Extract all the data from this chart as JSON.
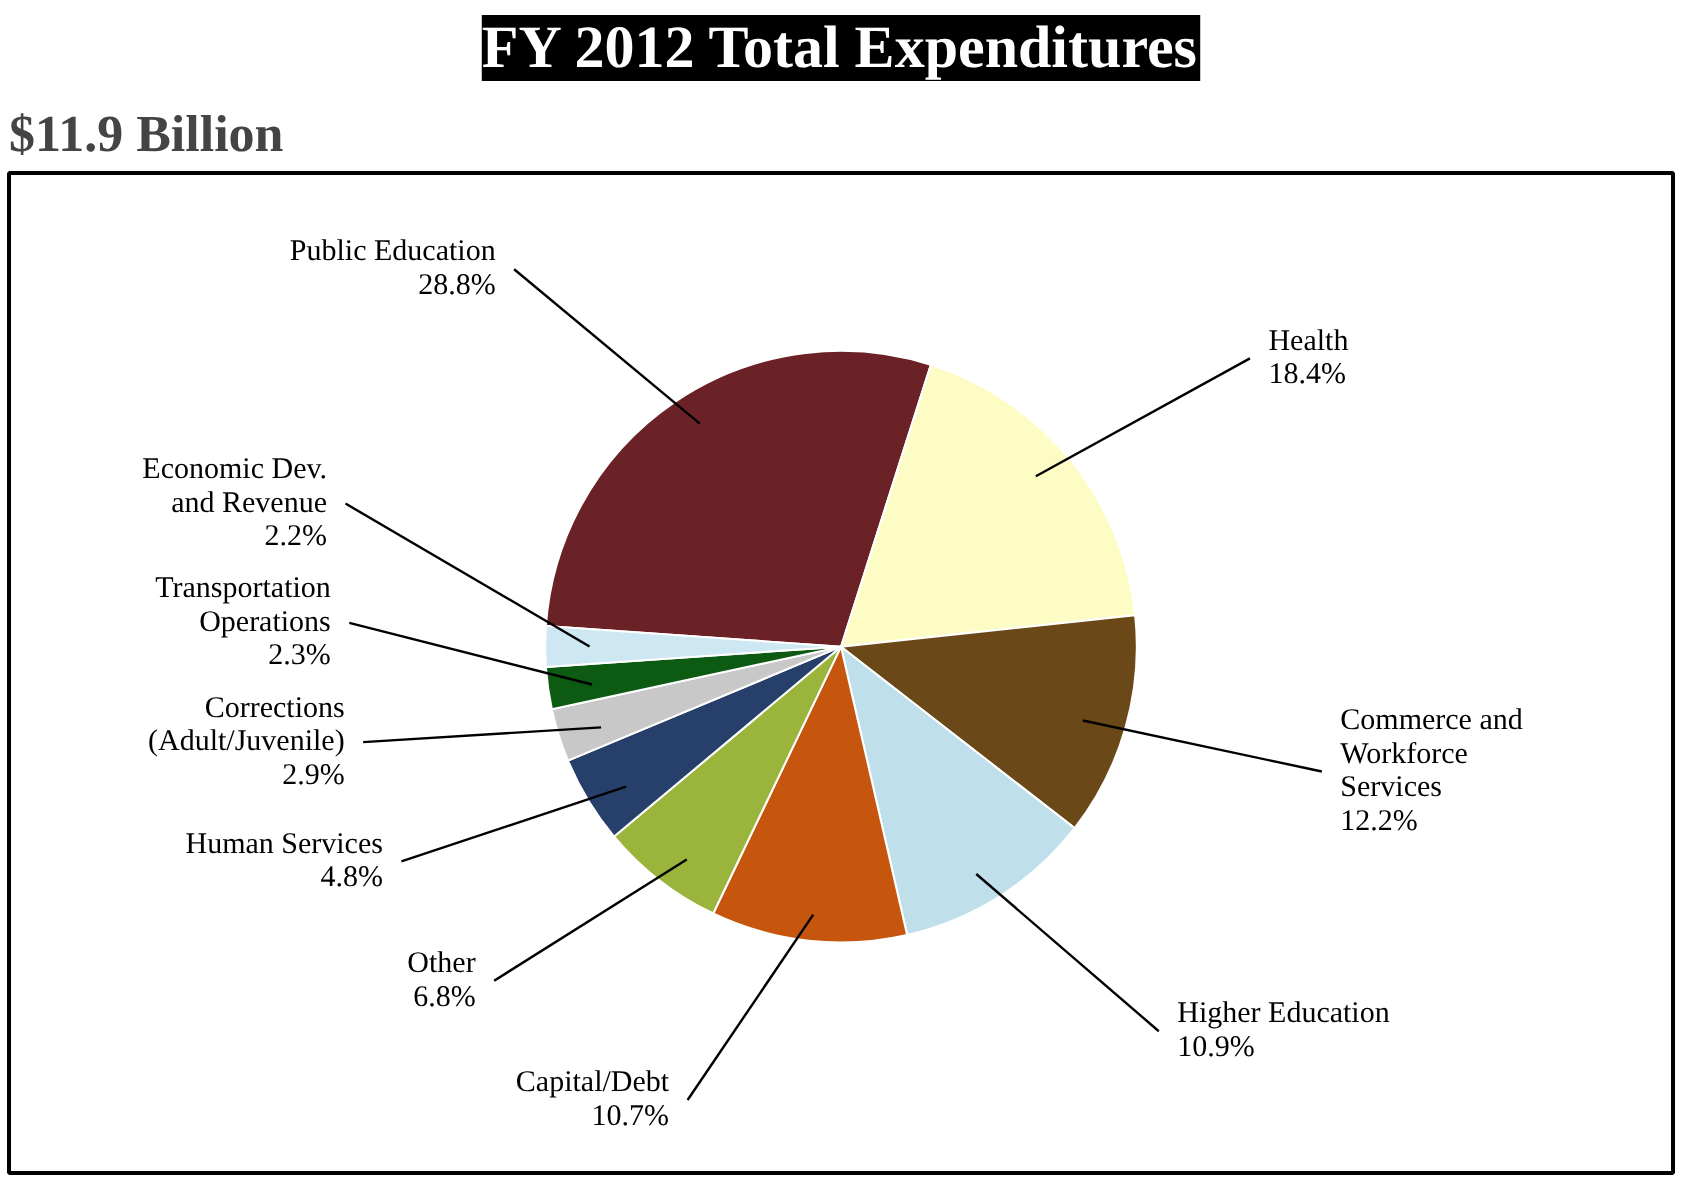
{
  "chart_data": {
    "type": "pie",
    "title": "FY 2012 Total Expenditures",
    "subtitle": "$11.9 Billion",
    "categories": [
      "Public Education",
      "Health",
      "Commerce and Workforce Services",
      "Higher Education",
      "Capital/Debt",
      "Other",
      "Human Services",
      "Corrections (Adult/Juvenile)",
      "Transportation Operations",
      "Economic Dev. and Revenue"
    ],
    "values": [
      28.8,
      18.4,
      12.2,
      10.9,
      10.7,
      6.8,
      4.8,
      2.9,
      2.3,
      2.2
    ],
    "value_labels": [
      "28.8%",
      "18.4%",
      "12.2%",
      "10.9%",
      "10.7%",
      "6.8%",
      "4.8%",
      "2.9%",
      "2.3%",
      "2.2%"
    ],
    "colors": [
      "#6b2226",
      "#fdfcc4",
      "#6b4818",
      "#bfe0ea",
      "#c6560e",
      "#9bb53c",
      "#27406b",
      "#c8c8c8",
      "#0d5a12",
      "#cde8f3"
    ]
  }
}
